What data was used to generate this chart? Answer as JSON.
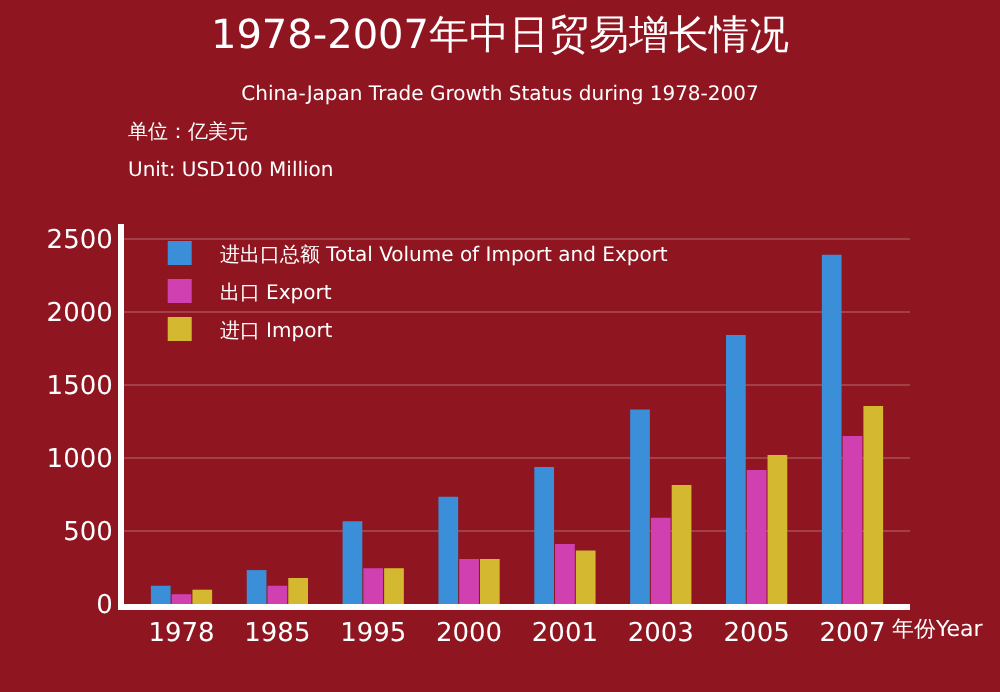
{
  "chart_data": {
    "type": "bar",
    "title": "1978-2007年中日贸易增长情况",
    "subtitle": "China-Japan Trade Growth Status during 1978-2007",
    "xlabel": "年份Year",
    "annotations": [
      "单位：亿美元",
      "Unit: USD100 Million"
    ],
    "categories": [
      "1978",
      "1985",
      "1995",
      "2000",
      "2001",
      "2003",
      "2005",
      "2007"
    ],
    "series": [
      {
        "name": "进出口总额 Total Volume of Import and Export",
        "color": "#3a8fd8",
        "values": [
          125,
          232,
          567,
          733,
          938,
          1331,
          1840,
          2390
        ]
      },
      {
        "name": "出口 Export",
        "color": "#d040b0",
        "values": [
          67,
          125,
          245,
          308,
          411,
          590,
          916,
          1149
        ]
      },
      {
        "name": "进口 Import",
        "color": "#d4b830",
        "values": [
          98,
          178,
          245,
          308,
          366,
          814,
          1019,
          1354
        ]
      }
    ],
    "ylim": [
      0,
      2600
    ],
    "yticks": [
      0,
      500,
      1000,
      1500,
      2000,
      2500
    ],
    "grid": "y",
    "legend": "top left"
  }
}
